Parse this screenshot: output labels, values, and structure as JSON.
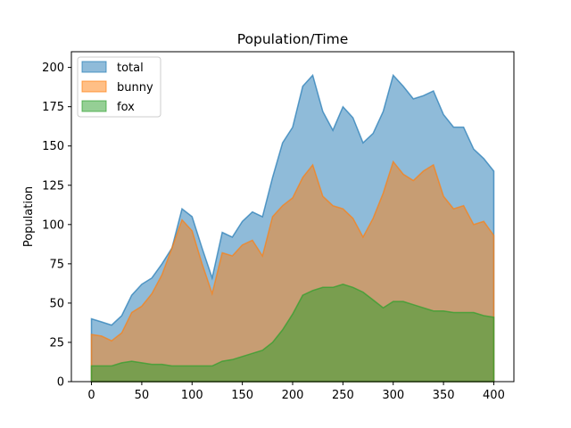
{
  "chart_data": {
    "type": "area",
    "title": "Population/Time",
    "xlabel": "",
    "ylabel": "Population",
    "xlim": [
      -20,
      420
    ],
    "ylim": [
      0,
      210
    ],
    "xticks": [
      "0",
      "50",
      "100",
      "150",
      "200",
      "250",
      "300",
      "350",
      "400"
    ],
    "yticks": [
      "0",
      "25",
      "50",
      "75",
      "100",
      "125",
      "150",
      "175",
      "200"
    ],
    "grid": false,
    "legend": "top-left",
    "stacked": false,
    "x": [
      0,
      10,
      20,
      30,
      40,
      50,
      60,
      70,
      80,
      90,
      100,
      110,
      120,
      130,
      140,
      150,
      160,
      170,
      180,
      190,
      200,
      210,
      220,
      230,
      240,
      250,
      260,
      270,
      280,
      290,
      300,
      310,
      320,
      330,
      340,
      350,
      360,
      370,
      380,
      390,
      400
    ],
    "series": [
      {
        "name": "total",
        "color": "#1f77b4",
        "values": [
          40,
          38,
          36,
          42,
          55,
          62,
          66,
          75,
          85,
          110,
          105,
          85,
          66,
          95,
          92,
          102,
          108,
          105,
          130,
          152,
          162,
          188,
          195,
          172,
          160,
          175,
          168,
          152,
          158,
          172,
          195,
          188,
          180,
          182,
          185,
          170,
          162,
          162,
          148,
          142,
          134
        ]
      },
      {
        "name": "bunny",
        "color": "#ff7f0e",
        "values": [
          30,
          29,
          26,
          31,
          44,
          48,
          56,
          68,
          85,
          103,
          96,
          75,
          56,
          82,
          80,
          87,
          90,
          80,
          105,
          112,
          117,
          130,
          138,
          118,
          112,
          110,
          104,
          92,
          104,
          120,
          140,
          132,
          128,
          134,
          138,
          118,
          110,
          112,
          100,
          102,
          93
        ]
      },
      {
        "name": "fox",
        "color": "#2ca02c",
        "values": [
          10,
          10,
          10,
          12,
          13,
          12,
          11,
          11,
          10,
          10,
          10,
          10,
          10,
          13,
          14,
          16,
          18,
          20,
          25,
          33,
          43,
          55,
          58,
          60,
          60,
          62,
          60,
          57,
          52,
          47,
          51,
          51,
          49,
          47,
          45,
          45,
          44,
          44,
          44,
          42,
          41
        ]
      }
    ]
  }
}
